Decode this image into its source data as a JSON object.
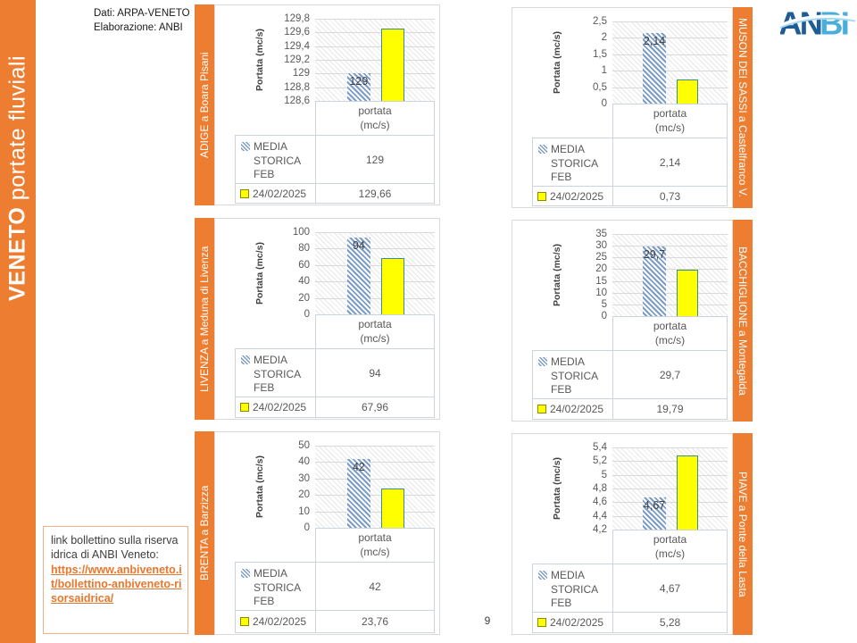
{
  "slide": {
    "sidebar": {
      "title_bold": "VENETO ",
      "title_rest": "portate fluviali"
    },
    "source_note": {
      "line1": "Dati: ARPA-VENETO",
      "line2": "Elaborazione: ANBI"
    },
    "logo": {
      "part1": "AN",
      "part2": "BI"
    },
    "link_box": {
      "intro": "link bollettino sulla riserva idrica di ANBI Veneto:",
      "url": "https://www.anbiveneto.it/bollettino-anbiveneto-risorsaidrica/"
    },
    "page_number": "9"
  },
  "colors": {
    "accent_orange": "#ED7D31",
    "bar_yellow": "#FFFF00",
    "bar_yellow_border": "#3C8E8E",
    "bar_blue_hatch": "#7B9CC7",
    "gridline": "#D9D9D9",
    "chart_text": "#595959",
    "link_orange": "#E8772E",
    "logo_blue_dark": "#1D5C95",
    "logo_blue_light": "#49AEDC"
  },
  "chart_data": [
    {
      "type": "bar",
      "station": "ADIGE a Boara Pisani",
      "ylabel": "Portata (mc/s)",
      "column_header": "portata\n(mc/s)",
      "ylim": [
        128.6,
        129.8
      ],
      "yticks": [
        "129,8",
        "129,6",
        "129,4",
        "129,2",
        "129",
        "128,8",
        "128,6"
      ],
      "series": [
        {
          "name": "MEDIA STORICA FEB",
          "value": 129,
          "display": "129"
        },
        {
          "name": "24/02/2025",
          "value": 129.66,
          "display": "129,66"
        }
      ]
    },
    {
      "type": "bar",
      "station": "MUSON DEI SASSI a Castelfranco V.",
      "ylabel": "Portata (mc/s)",
      "column_header": "portata\n(mc/s)",
      "ylim": [
        0,
        2.5
      ],
      "yticks": [
        "2,5",
        "2",
        "1,5",
        "1",
        "0,5",
        "0"
      ],
      "series": [
        {
          "name": "MEDIA STORICA FEB",
          "value": 2.14,
          "display": "2,14"
        },
        {
          "name": "24/02/2025",
          "value": 0.73,
          "display": "0,73"
        }
      ]
    },
    {
      "type": "bar",
      "station": "LIVENZA a Meduna di Livenza",
      "ylabel": "Portata (mc/s)",
      "column_header": "portata\n(mc/s)",
      "ylim": [
        0,
        100
      ],
      "yticks": [
        "100",
        "80",
        "60",
        "40",
        "20",
        "0"
      ],
      "series": [
        {
          "name": "MEDIA STORICA FEB",
          "value": 94,
          "display": "94"
        },
        {
          "name": "24/02/2025",
          "value": 67.96,
          "display": "67,96"
        }
      ]
    },
    {
      "type": "bar",
      "station": "BACCHIGLIONE a Montegalda",
      "ylabel": "Portata (mc/s)",
      "column_header": "portata\n(mc/s)",
      "ylim": [
        0,
        35
      ],
      "yticks": [
        "35",
        "30",
        "25",
        "20",
        "15",
        "10",
        "5",
        "0"
      ],
      "series": [
        {
          "name": "MEDIA STORICA FEB",
          "value": 29.7,
          "display": "29,7"
        },
        {
          "name": "24/02/2025",
          "value": 19.79,
          "display": "19,79"
        }
      ]
    },
    {
      "type": "bar",
      "station": "BRENTA a Barzizza",
      "ylabel": "Portata (mc/s)",
      "column_header": "portata\n(mc/s)",
      "ylim": [
        0,
        50
      ],
      "yticks": [
        "50",
        "40",
        "30",
        "20",
        "10",
        "0"
      ],
      "series": [
        {
          "name": "MEDIA STORICA FEB",
          "value": 42,
          "display": "42"
        },
        {
          "name": "24/02/2025",
          "value": 23.76,
          "display": "23,76"
        }
      ]
    },
    {
      "type": "bar",
      "station": "PIAVE a Ponte della Lasta",
      "ylabel": "Portata (mc/s)",
      "column_header": "portata\n(mc/s)",
      "ylim": [
        4.2,
        5.4
      ],
      "yticks": [
        "5,4",
        "5,2",
        "5",
        "4,8",
        "4,6",
        "4,4",
        "4,2"
      ],
      "series": [
        {
          "name": "MEDIA STORICA FEB",
          "value": 4.67,
          "display": "4,67"
        },
        {
          "name": "24/02/2025",
          "value": 5.28,
          "display": "5,28"
        }
      ]
    }
  ]
}
